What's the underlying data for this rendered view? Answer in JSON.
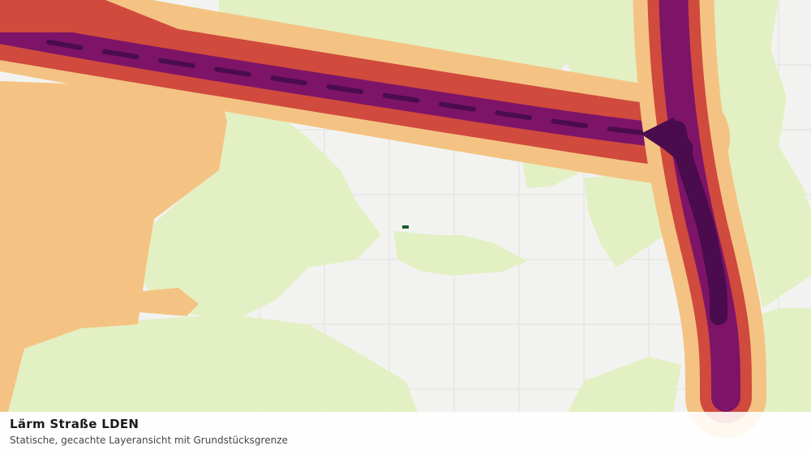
{
  "layer_panel": {
    "title": "Lärm Straße LDEN",
    "subtitle": "Statische, gecachte Layeransicht mit Grundstücksgrenze"
  }
}
